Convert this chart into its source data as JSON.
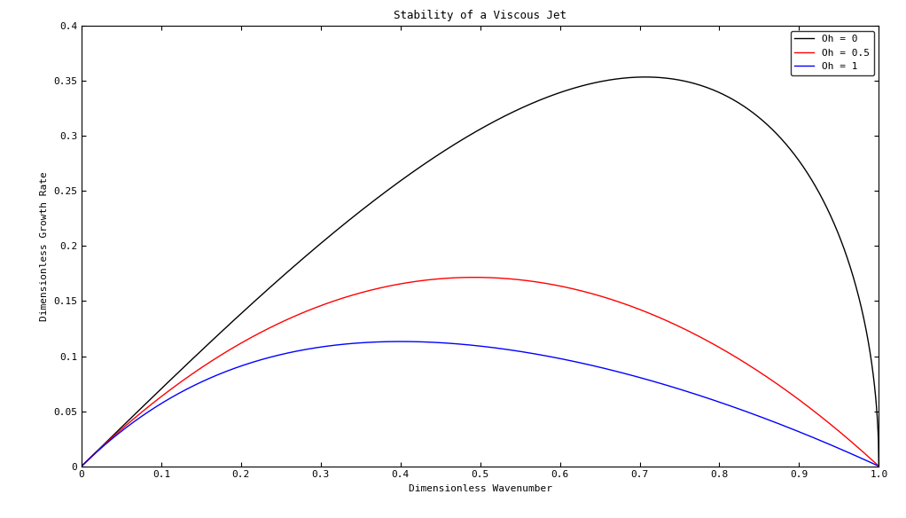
{
  "title": "Stability of a Viscous Jet",
  "xlabel": "Dimensionless Wavenumber",
  "ylabel": "Dimensionless Growth Rate",
  "xlim": [
    0,
    1
  ],
  "ylim": [
    0,
    0.4
  ],
  "yticks": [
    0,
    0.05,
    0.1,
    0.15,
    0.2,
    0.25,
    0.3,
    0.35,
    0.4
  ],
  "xticks": [
    0,
    0.1,
    0.2,
    0.3,
    0.4,
    0.5,
    0.6,
    0.7,
    0.8,
    0.9,
    1.0
  ],
  "Oh_values": [
    0,
    0.5,
    1
  ],
  "colors": [
    "black",
    "red",
    "blue"
  ],
  "legend_labels": [
    "Oh = 0",
    "Oh = 0.5",
    "Oh = 1"
  ],
  "legend_loc": "upper right",
  "background_color": "white",
  "title_fontsize": 9,
  "axis_label_fontsize": 8,
  "tick_fontsize": 8,
  "legend_fontsize": 8,
  "linewidth": 1.0
}
